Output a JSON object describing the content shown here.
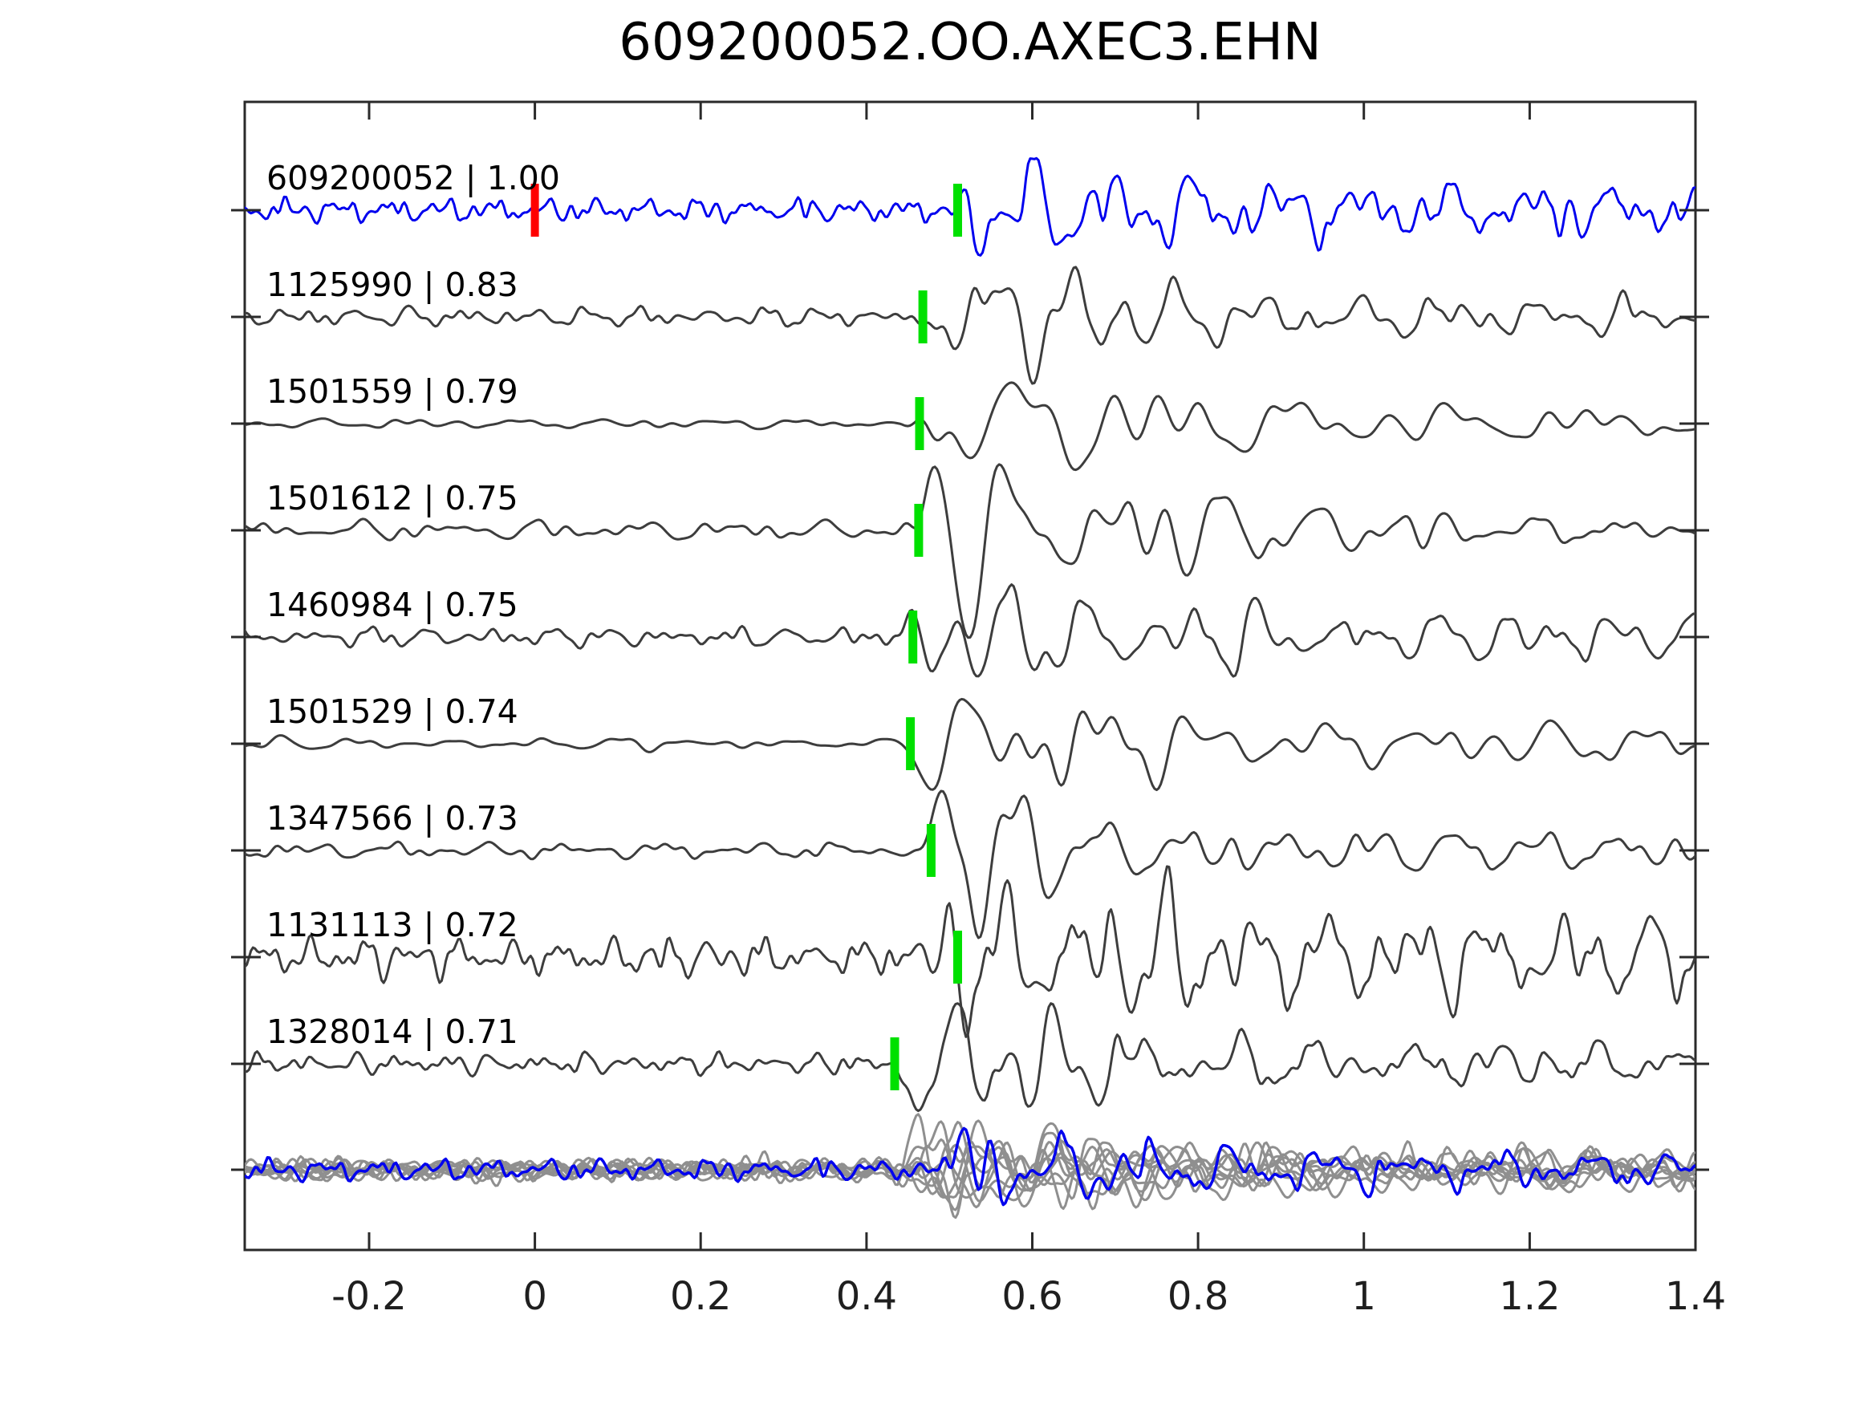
{
  "title": "609200052.OO.AXEC3.EHN",
  "colors": {
    "template_trace": "#0000ee",
    "matched_trace": "#3d3d3d",
    "overlay_gray": "#8f8f8f",
    "overlay_highlight": "#0000ee",
    "pick_marker_green": "#00e000",
    "zero_marker_red": "#ff0000",
    "axis": "#2a2a2a",
    "tick_label": "#1f1f1f",
    "background": "#ffffff"
  },
  "axis": {
    "xlim": [
      -0.35,
      1.4
    ],
    "tick_values": [
      -0.2,
      0,
      0.2,
      0.4,
      0.6,
      0.8,
      1,
      1.2,
      1.4
    ],
    "tick_labels": [
      "-0.2",
      "0",
      "0.2",
      "0.4",
      "0.6",
      "0.8",
      "1",
      "1.2",
      "1.4"
    ]
  },
  "chart_data": {
    "type": "line",
    "title": "609200052.OO.AXEC3.EHN",
    "xlabel": "",
    "ylabel": "",
    "xlim": [
      -0.35,
      1.4
    ],
    "grid": false,
    "legend": "none",
    "traces": [
      {
        "id": "609200052",
        "correlation": 1.0,
        "label": "609200052 | 1.00",
        "role": "template",
        "pick_time": 0.51,
        "zero_marker_time": 0.0,
        "synth": {
          "seed": 7,
          "noise_amp": 11,
          "noise_freq": 32,
          "sig_amp": 52,
          "sig_freq": 18,
          "onset": 0.5,
          "rise": 0.035,
          "decay": 0.28,
          "tail": 0.34
        }
      },
      {
        "id": "1125990",
        "correlation": 0.83,
        "label": "1125990 | 0.83",
        "role": "match",
        "pick_time": 0.468,
        "synth": {
          "seed": 13,
          "noise_amp": 9,
          "noise_freq": 22,
          "sig_amp": 62,
          "sig_freq": 14,
          "onset": 0.455,
          "rise": 0.05,
          "decay": 0.2,
          "tail": 0.22
        }
      },
      {
        "id": "1501559",
        "correlation": 0.79,
        "label": "1501559 | 0.79",
        "role": "match",
        "pick_time": 0.464,
        "synth": {
          "seed": 21,
          "noise_amp": 4.5,
          "noise_freq": 14,
          "sig_amp": 55,
          "sig_freq": 11,
          "onset": 0.44,
          "rise": 0.06,
          "decay": 0.28,
          "tail": 0.18
        }
      },
      {
        "id": "1501612",
        "correlation": 0.75,
        "label": "1501612 | 0.75",
        "role": "match",
        "pick_time": 0.463,
        "synth": {
          "seed": 29,
          "noise_amp": 9,
          "noise_freq": 16,
          "sig_amp": 72,
          "sig_freq": 11,
          "onset": 0.44,
          "rise": 0.06,
          "decay": 0.3,
          "tail": 0.12
        }
      },
      {
        "id": "1460984",
        "correlation": 0.75,
        "label": "1460984 | 0.75",
        "role": "match",
        "pick_time": 0.456,
        "synth": {
          "seed": 37,
          "noise_amp": 9,
          "noise_freq": 22,
          "sig_amp": 60,
          "sig_freq": 13,
          "onset": 0.435,
          "rise": 0.05,
          "decay": 0.22,
          "tail": 0.25
        }
      },
      {
        "id": "1501529",
        "correlation": 0.74,
        "label": "1501529 | 0.74",
        "role": "match",
        "pick_time": 0.453,
        "synth": {
          "seed": 43,
          "noise_amp": 5.5,
          "noise_freq": 13,
          "sig_amp": 58,
          "sig_freq": 12,
          "onset": 0.435,
          "rise": 0.06,
          "decay": 0.25,
          "tail": 0.2
        }
      },
      {
        "id": "1347566",
        "correlation": 0.73,
        "label": "1347566 | 0.73",
        "role": "match",
        "pick_time": 0.478,
        "synth": {
          "seed": 53,
          "noise_amp": 7.5,
          "noise_freq": 18,
          "sig_amp": 62,
          "sig_freq": 13,
          "onset": 0.45,
          "rise": 0.05,
          "decay": 0.2,
          "tail": 0.18
        }
      },
      {
        "id": "1131113",
        "correlation": 0.72,
        "label": "1131113 | 0.72",
        "role": "match",
        "pick_time": 0.51,
        "synth": {
          "seed": 61,
          "noise_amp": 18,
          "noise_freq": 26,
          "sig_amp": 58,
          "sig_freq": 15,
          "onset": 0.46,
          "rise": 0.05,
          "decay": 0.35,
          "tail": 0.55
        }
      },
      {
        "id": "1328014",
        "correlation": 0.71,
        "label": "1328014 | 0.71",
        "role": "match",
        "pick_time": 0.434,
        "synth": {
          "seed": 71,
          "noise_amp": 9.5,
          "noise_freq": 26,
          "sig_amp": 65,
          "sig_freq": 13,
          "onset": 0.42,
          "rise": 0.05,
          "decay": 0.22,
          "tail": 0.2
        }
      }
    ],
    "overlay": {
      "description": "all matched traces superimposed (gray) with template highlighted (blue)",
      "gray_synths": [
        {
          "seed": 101,
          "noise_amp": 9,
          "noise_freq": 24,
          "sig_amp": 34,
          "sig_freq": 13,
          "onset": 0.42,
          "rise": 0.05,
          "decay": 0.22,
          "tail": 0.28
        },
        {
          "seed": 102,
          "noise_amp": 10,
          "noise_freq": 20,
          "sig_amp": 40,
          "sig_freq": 12,
          "onset": 0.44,
          "rise": 0.05,
          "decay": 0.2,
          "tail": 0.25
        },
        {
          "seed": 103,
          "noise_amp": 8,
          "noise_freq": 26,
          "sig_amp": 36,
          "sig_freq": 14,
          "onset": 0.43,
          "rise": 0.05,
          "decay": 0.24,
          "tail": 0.3
        },
        {
          "seed": 104,
          "noise_amp": 11,
          "noise_freq": 18,
          "sig_amp": 42,
          "sig_freq": 11,
          "onset": 0.45,
          "rise": 0.06,
          "decay": 0.22,
          "tail": 0.22
        },
        {
          "seed": 105,
          "noise_amp": 9,
          "noise_freq": 22,
          "sig_amp": 38,
          "sig_freq": 13,
          "onset": 0.42,
          "rise": 0.05,
          "decay": 0.26,
          "tail": 0.28
        },
        {
          "seed": 106,
          "noise_amp": 10,
          "noise_freq": 25,
          "sig_amp": 35,
          "sig_freq": 15,
          "onset": 0.46,
          "rise": 0.05,
          "decay": 0.2,
          "tail": 0.32
        },
        {
          "seed": 107,
          "noise_amp": 8,
          "noise_freq": 19,
          "sig_amp": 44,
          "sig_freq": 12,
          "onset": 0.43,
          "rise": 0.05,
          "decay": 0.24,
          "tail": 0.2
        },
        {
          "seed": 108,
          "noise_amp": 12,
          "noise_freq": 23,
          "sig_amp": 37,
          "sig_freq": 14,
          "onset": 0.44,
          "rise": 0.05,
          "decay": 0.28,
          "tail": 0.26
        },
        {
          "seed": 109,
          "noise_amp": 9,
          "noise_freq": 21,
          "sig_amp": 41,
          "sig_freq": 12,
          "onset": 0.45,
          "rise": 0.06,
          "decay": 0.22,
          "tail": 0.24
        }
      ],
      "highlight_synth": {
        "seed": 7,
        "noise_amp": 10,
        "noise_freq": 30,
        "sig_amp": 38,
        "sig_freq": 17,
        "onset": 0.47,
        "rise": 0.04,
        "decay": 0.3,
        "tail": 0.32
      }
    }
  }
}
